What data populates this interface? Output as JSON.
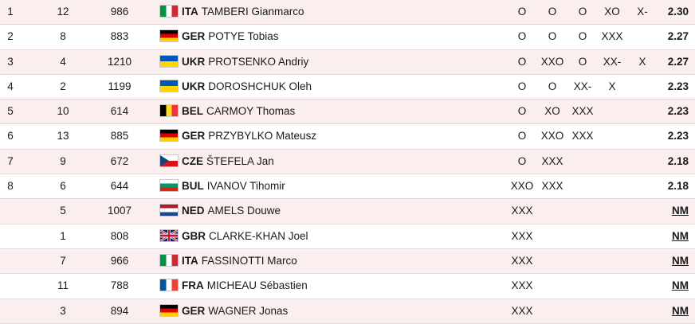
{
  "rows": [
    {
      "rank": "1",
      "bib": "12",
      "order": "986",
      "noc": "ITA",
      "flag_icon": "italy-flag-icon",
      "name": "TAMBERI Gianmarco",
      "attempts": [
        "O",
        "O",
        "O",
        "XO",
        "X-"
      ],
      "result": "2.30"
    },
    {
      "rank": "2",
      "bib": "8",
      "order": "883",
      "noc": "GER",
      "flag_icon": "germany-flag-icon",
      "name": "POTYE Tobias",
      "attempts": [
        "O",
        "O",
        "O",
        "XXX",
        ""
      ],
      "result": "2.27"
    },
    {
      "rank": "3",
      "bib": "4",
      "order": "1210",
      "noc": "UKR",
      "flag_icon": "ukraine-flag-icon",
      "name": "PROTSENKO Andriy",
      "attempts": [
        "O",
        "XXO",
        "O",
        "XX-",
        "X"
      ],
      "result": "2.27"
    },
    {
      "rank": "4",
      "bib": "2",
      "order": "1199",
      "noc": "UKR",
      "flag_icon": "ukraine-flag-icon",
      "name": "DOROSHCHUK Oleh",
      "attempts": [
        "O",
        "O",
        "XX-",
        "X",
        ""
      ],
      "result": "2.23"
    },
    {
      "rank": "5",
      "bib": "10",
      "order": "614",
      "noc": "BEL",
      "flag_icon": "belgium-flag-icon",
      "name": "CARMOY Thomas",
      "attempts": [
        "O",
        "XO",
        "XXX",
        "",
        ""
      ],
      "result": "2.23"
    },
    {
      "rank": "6",
      "bib": "13",
      "order": "885",
      "noc": "GER",
      "flag_icon": "germany-flag-icon",
      "name": "PRZYBYLKO Mateusz",
      "attempts": [
        "O",
        "XXO",
        "XXX",
        "",
        ""
      ],
      "result": "2.23"
    },
    {
      "rank": "7",
      "bib": "9",
      "order": "672",
      "noc": "CZE",
      "flag_icon": "czechia-flag-icon",
      "name": "ŠTEFELA Jan",
      "attempts": [
        "O",
        "XXX",
        "",
        "",
        ""
      ],
      "result": "2.18"
    },
    {
      "rank": "8",
      "bib": "6",
      "order": "644",
      "noc": "BUL",
      "flag_icon": "bulgaria-flag-icon",
      "name": "IVANOV Tihomir",
      "attempts": [
        "XXO",
        "XXX",
        "",
        "",
        ""
      ],
      "result": "2.18"
    },
    {
      "rank": "",
      "bib": "5",
      "order": "1007",
      "noc": "NED",
      "flag_icon": "netherlands-flag-icon",
      "name": "AMELS Douwe",
      "attempts": [
        "XXX",
        "",
        "",
        "",
        ""
      ],
      "result": "NM"
    },
    {
      "rank": "",
      "bib": "1",
      "order": "808",
      "noc": "GBR",
      "flag_icon": "great-britain-flag-icon",
      "name": "CLARKE-KHAN Joel",
      "attempts": [
        "XXX",
        "",
        "",
        "",
        ""
      ],
      "result": "NM"
    },
    {
      "rank": "",
      "bib": "7",
      "order": "966",
      "noc": "ITA",
      "flag_icon": "italy-flag-icon",
      "name": "FASSINOTTI Marco",
      "attempts": [
        "XXX",
        "",
        "",
        "",
        ""
      ],
      "result": "NM"
    },
    {
      "rank": "",
      "bib": "11",
      "order": "788",
      "noc": "FRA",
      "flag_icon": "france-flag-icon",
      "name": "MICHEAU Sébastien",
      "attempts": [
        "XXX",
        "",
        "",
        "",
        ""
      ],
      "result": "NM"
    },
    {
      "rank": "",
      "bib": "3",
      "order": "894",
      "noc": "GER",
      "flag_icon": "germany-flag-icon",
      "name": "WAGNER Jonas",
      "attempts": [
        "XXX",
        "",
        "",
        "",
        ""
      ],
      "result": "NM"
    }
  ],
  "colors": {
    "row_alt": "#fbeeee",
    "row_plain": "#ffffff",
    "row_border": "#e9d6d6",
    "text": "#1a1a1a"
  }
}
